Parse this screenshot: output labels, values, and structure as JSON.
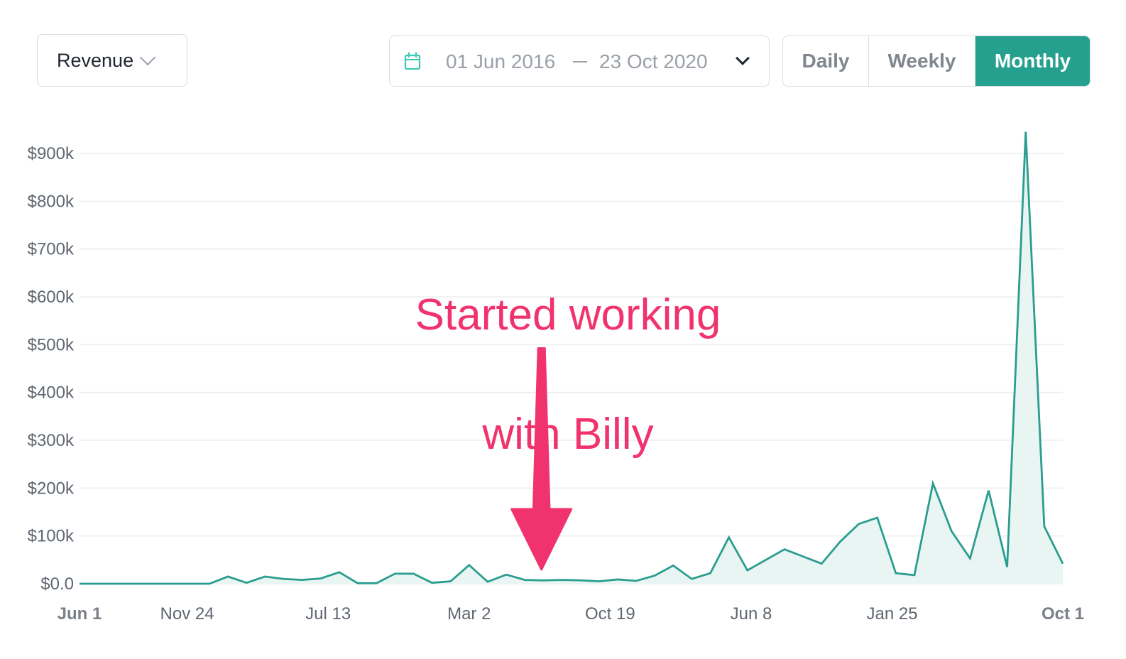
{
  "controls": {
    "metric": {
      "label": "Revenue",
      "icon": "chevron-down-icon"
    },
    "date_range": {
      "icon": "calendar-icon",
      "start": "01 Jun 2016",
      "separator": "—",
      "end": "23 Oct 2020",
      "dropdown_icon": "chevron-down-icon"
    },
    "granularity": {
      "options": [
        "Daily",
        "Weekly",
        "Monthly"
      ],
      "selected": "Monthly"
    }
  },
  "colors": {
    "accent": "#25a08e",
    "line": "#2a9d8f",
    "area_fill": "#e9f5f2",
    "annotation": "#f0336e",
    "gridline": "#ebedf0"
  },
  "annotation": {
    "lines": [
      "Started working",
      "with Billy"
    ],
    "arrow_x": "Jun 2018",
    "arrow_to_value": 3000
  },
  "chart_data": {
    "type": "area",
    "title": "",
    "xlabel": "",
    "ylabel": "",
    "ylim": [
      0,
      900000
    ],
    "y_ticks": [
      "$0.0",
      "$100k",
      "$200k",
      "$300k",
      "$400k",
      "$500k",
      "$600k",
      "$700k",
      "$800k",
      "$900k"
    ],
    "y_tick_values": [
      0,
      100000,
      200000,
      300000,
      400000,
      500000,
      600000,
      700000,
      800000,
      900000
    ],
    "x_tick_labels": [
      "Jun 1",
      "Nov 24",
      "Jul 13",
      "Mar 2",
      "Oct 19",
      "Jun 8",
      "Jan 25",
      "Oct 1"
    ],
    "x_tick_positions": [
      0,
      5.8,
      13.4,
      21.0,
      28.6,
      36.2,
      43.8,
      53.0
    ],
    "x_tick_bold": [
      true,
      false,
      false,
      false,
      false,
      false,
      false,
      true
    ],
    "grid": true,
    "legend": "none",
    "series": [
      {
        "values": [
          0,
          0,
          0,
          0,
          0,
          0,
          0,
          0,
          15000,
          2000,
          15000,
          10000,
          8000,
          11000,
          24000,
          1000,
          1000,
          21000,
          21000,
          2000,
          5000,
          39000,
          4000,
          19000,
          8000,
          7000,
          8000,
          7000,
          5000,
          9000,
          6000,
          17000,
          38000,
          10000,
          22000,
          97000,
          28000,
          50000,
          72000,
          57000,
          42000,
          88000,
          125000,
          138000,
          22000,
          18000,
          210000,
          110000,
          53000,
          195000,
          35000,
          945000,
          120000,
          42000
        ]
      }
    ]
  }
}
